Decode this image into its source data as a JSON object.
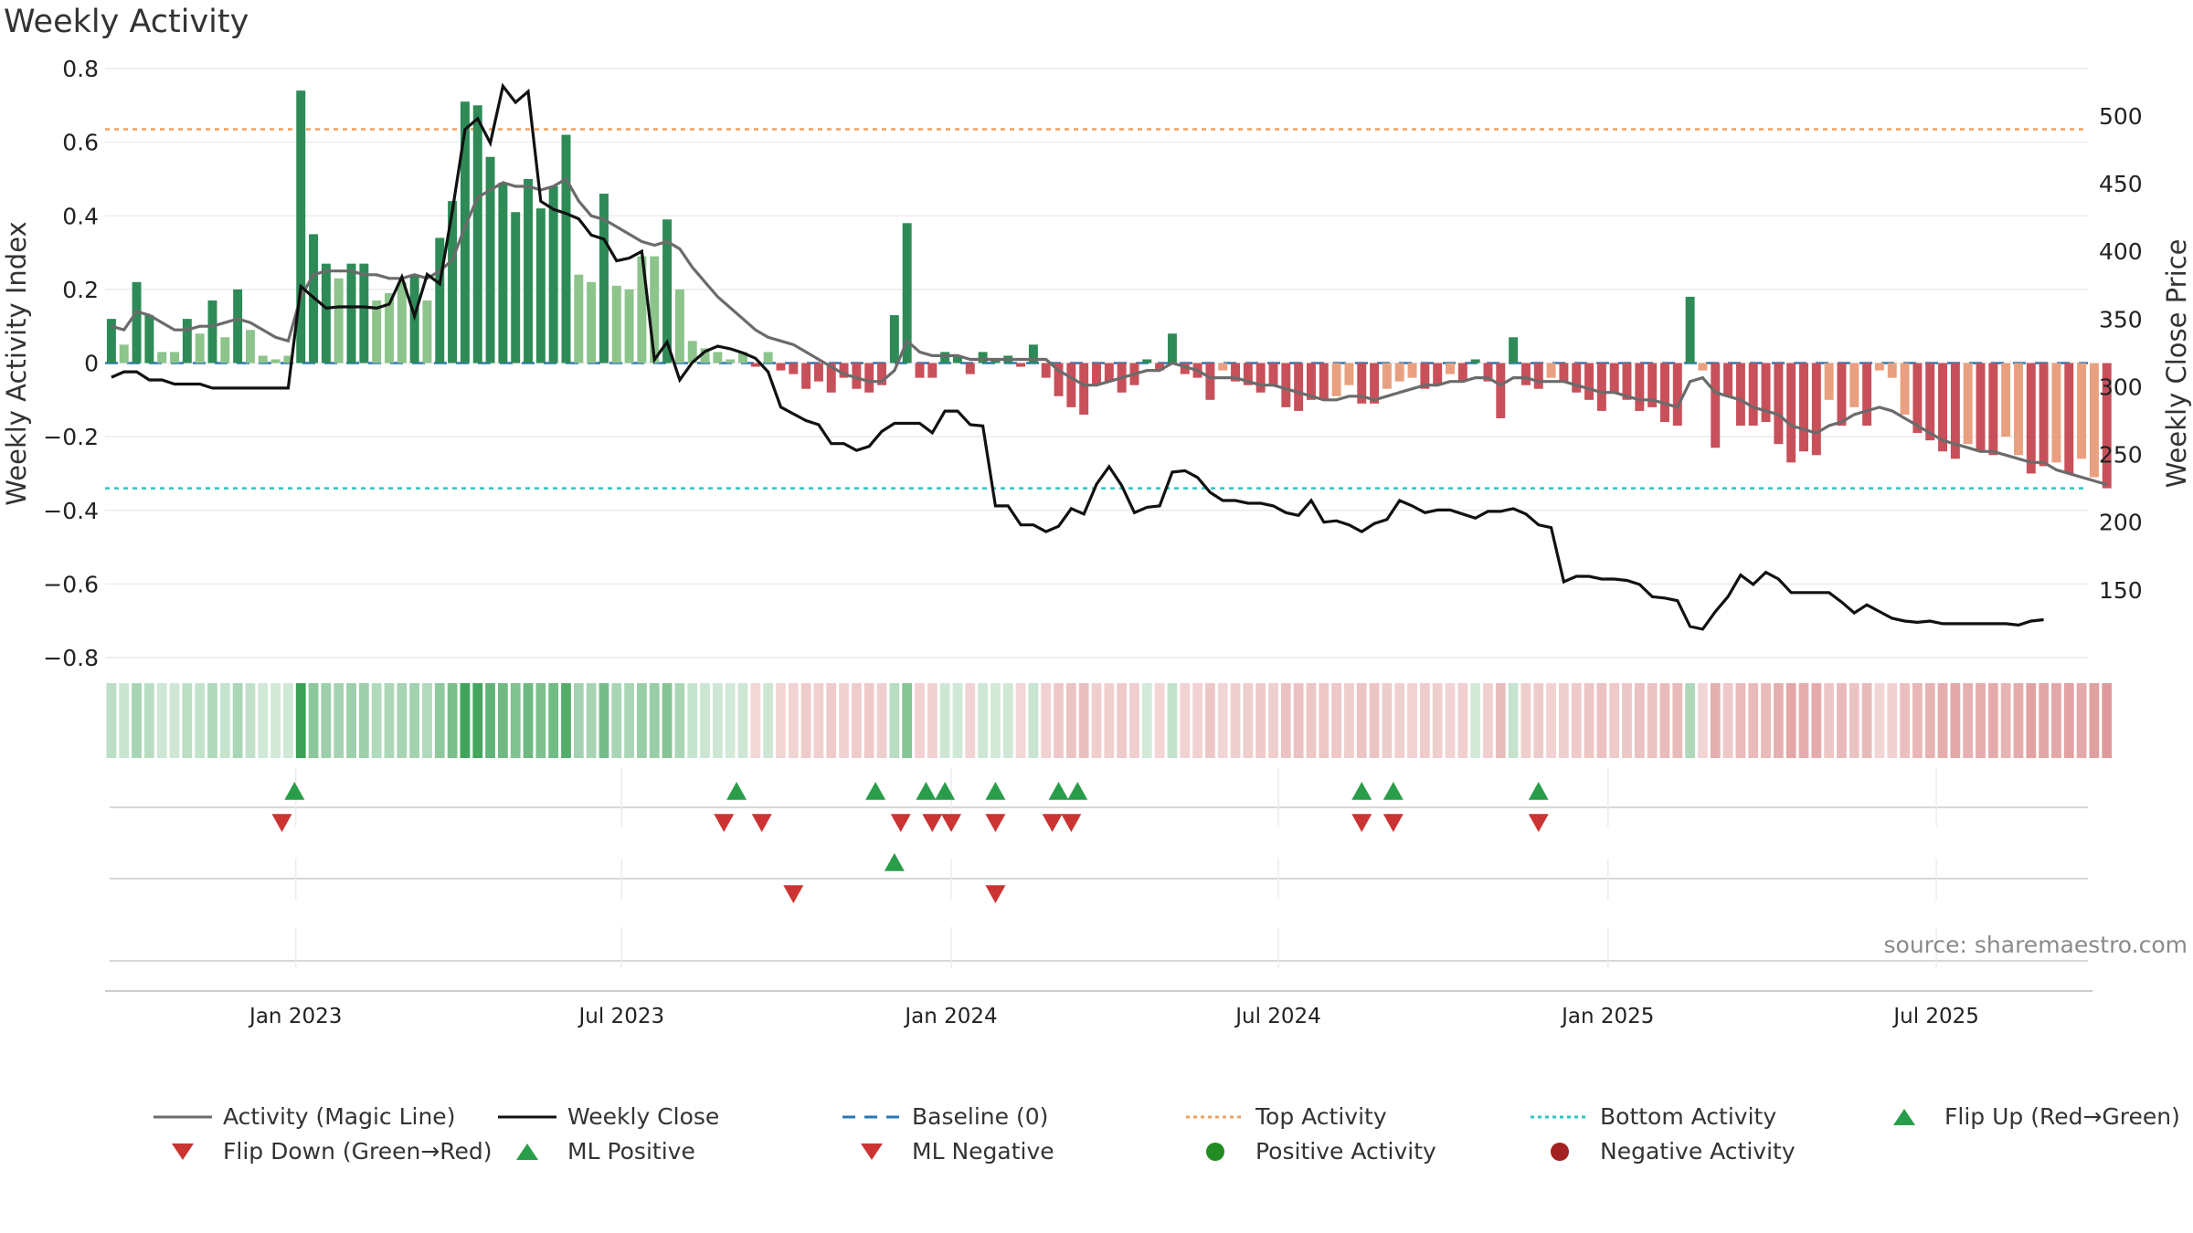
{
  "chart_data": {
    "type": "bar",
    "title": "Weekly Activity",
    "ylabel": "Weekly Activity Index",
    "y2label": "Weekly Close Price",
    "ylim": [
      -0.8,
      0.8
    ],
    "y2lim": [
      100,
      535
    ],
    "yticks": [
      "0.8",
      "0.6",
      "0.4",
      "0.2",
      "0",
      "−0.2",
      "−0.4",
      "−0.6",
      "−0.8"
    ],
    "yticks_values": [
      0.8,
      0.6,
      0.4,
      0.2,
      0,
      -0.2,
      -0.4,
      -0.6,
      -0.8
    ],
    "y2ticks": [
      "500",
      "450",
      "400",
      "350",
      "300",
      "250",
      "200",
      "150"
    ],
    "y2ticks_values": [
      500,
      450,
      400,
      350,
      300,
      250,
      200,
      150
    ],
    "xticks": [
      "Jan 2023",
      "Jul 2023",
      "Jan 2024",
      "Jul 2024",
      "Jan 2025",
      "Jul 2025"
    ],
    "xticks_weeks": [
      14.6,
      40.4,
      66.5,
      92.4,
      118.5,
      144.5
    ],
    "week_count": 157,
    "reference_lines": {
      "top_activity": 0.635,
      "bottom_activity": -0.34,
      "baseline": 0
    },
    "activity": [
      0.12,
      0.05,
      0.22,
      0.13,
      0.03,
      0.03,
      0.12,
      0.08,
      0.17,
      0.07,
      0.2,
      0.09,
      0.02,
      0.01,
      0.02,
      0.74,
      0.35,
      0.27,
      0.23,
      0.27,
      0.27,
      0.17,
      0.19,
      0.22,
      0.24,
      0.17,
      0.34,
      0.44,
      0.71,
      0.7,
      0.56,
      0.49,
      0.41,
      0.5,
      0.42,
      0.48,
      0.62,
      0.24,
      0.22,
      0.46,
      0.21,
      0.2,
      0.29,
      0.29,
      0.39,
      0.2,
      0.06,
      0.04,
      0.03,
      0.01,
      0.03,
      -0.01,
      0.03,
      -0.02,
      -0.03,
      -0.07,
      -0.05,
      -0.08,
      -0.04,
      -0.07,
      -0.08,
      -0.06,
      0.13,
      0.38,
      -0.04,
      -0.04,
      0.03,
      0.02,
      -0.03,
      0.03,
      0.01,
      0.02,
      -0.01,
      0.05,
      -0.04,
      -0.09,
      -0.12,
      -0.14,
      -0.06,
      -0.05,
      -0.08,
      -0.06,
      0.01,
      -0.02,
      0.08,
      -0.03,
      -0.04,
      -0.1,
      -0.02,
      -0.05,
      -0.06,
      -0.08,
      -0.06,
      -0.12,
      -0.13,
      -0.1,
      -0.1,
      -0.09,
      -0.06,
      -0.11,
      -0.11,
      -0.07,
      -0.05,
      -0.04,
      -0.07,
      -0.06,
      -0.03,
      -0.05,
      0.01,
      -0.05,
      -0.15,
      0.07,
      -0.06,
      -0.07,
      -0.04,
      -0.05,
      -0.08,
      -0.1,
      -0.13,
      -0.08,
      -0.1,
      -0.13,
      -0.12,
      -0.16,
      -0.17,
      0.18,
      -0.02,
      -0.23,
      -0.09,
      -0.17,
      -0.17,
      -0.16,
      -0.22,
      -0.27,
      -0.24,
      -0.25,
      -0.1,
      -0.17,
      -0.12,
      -0.17,
      -0.02,
      -0.04,
      -0.14,
      -0.19,
      -0.21,
      -0.24,
      -0.26,
      -0.22,
      -0.24,
      -0.25,
      -0.2,
      -0.25,
      -0.3,
      -0.28,
      -0.27,
      -0.3,
      -0.26,
      -0.31,
      -0.34
    ],
    "series": [
      {
        "name": "Activity (Magic Line)",
        "values": [
          0.1,
          0.09,
          0.14,
          0.13,
          0.11,
          0.09,
          0.09,
          0.1,
          0.1,
          0.11,
          0.12,
          0.11,
          0.09,
          0.07,
          0.06,
          0.18,
          0.24,
          0.25,
          0.25,
          0.25,
          0.24,
          0.24,
          0.23,
          0.23,
          0.24,
          0.23,
          0.25,
          0.28,
          0.37,
          0.45,
          0.47,
          0.49,
          0.48,
          0.48,
          0.47,
          0.48,
          0.5,
          0.44,
          0.4,
          0.39,
          0.37,
          0.35,
          0.33,
          0.32,
          0.33,
          0.31,
          0.26,
          0.22,
          0.18,
          0.15,
          0.12,
          0.09,
          0.07,
          0.06,
          0.05,
          0.03,
          0.01,
          -0.01,
          -0.03,
          -0.04,
          -0.05,
          -0.05,
          -0.02,
          0.06,
          0.03,
          0.02,
          0.02,
          0.02,
          0.01,
          0.01,
          0.01,
          0.01,
          0.01,
          0.01,
          0.01,
          -0.02,
          -0.04,
          -0.06,
          -0.06,
          -0.05,
          -0.04,
          -0.03,
          -0.02,
          -0.02,
          0.0,
          -0.01,
          -0.02,
          -0.04,
          -0.04,
          -0.04,
          -0.05,
          -0.06,
          -0.06,
          -0.07,
          -0.08,
          -0.09,
          -0.1,
          -0.1,
          -0.09,
          -0.09,
          -0.1,
          -0.09,
          -0.08,
          -0.07,
          -0.06,
          -0.06,
          -0.05,
          -0.05,
          -0.04,
          -0.04,
          -0.06,
          -0.04,
          -0.04,
          -0.05,
          -0.05,
          -0.05,
          -0.06,
          -0.07,
          -0.08,
          -0.08,
          -0.09,
          -0.1,
          -0.1,
          -0.11,
          -0.12,
          -0.05,
          -0.04,
          -0.08,
          -0.09,
          -0.1,
          -0.12,
          -0.13,
          -0.14,
          -0.17,
          -0.18,
          -0.19,
          -0.17,
          -0.16,
          -0.14,
          -0.13,
          -0.12,
          -0.13,
          -0.15,
          -0.17,
          -0.19,
          -0.21,
          -0.22,
          -0.23,
          -0.24,
          -0.24,
          -0.25,
          -0.26,
          -0.27,
          -0.27,
          -0.29,
          -0.3,
          -0.31,
          -0.32,
          -0.33
        ]
      },
      {
        "name": "Weekly Close",
        "values": [
          307,
          311,
          311,
          305,
          305,
          302,
          302,
          302,
          299,
          299,
          299,
          299,
          299,
          299,
          299,
          374,
          366,
          358,
          359,
          359,
          359,
          358,
          361,
          381,
          352,
          383,
          376,
          430,
          490,
          498,
          480,
          522,
          510,
          518,
          437,
          431,
          428,
          424,
          412,
          409,
          393,
          395,
          400,
          320,
          333,
          305,
          318,
          326,
          330,
          328,
          325,
          321,
          311,
          285,
          280,
          275,
          272,
          258,
          258,
          253,
          256,
          267,
          273,
          273,
          273,
          266,
          282,
          282,
          272,
          271,
          212,
          212,
          198,
          198,
          193,
          197,
          210,
          206,
          228,
          241,
          227,
          207,
          211,
          212,
          237,
          238,
          233,
          222,
          216,
          216,
          214,
          214,
          212,
          207,
          205,
          216,
          200,
          201,
          198,
          193,
          199,
          202,
          216,
          212,
          207,
          209,
          209,
          206,
          203,
          208,
          208,
          210,
          206,
          198,
          196,
          156,
          160,
          160,
          158,
          158,
          157,
          154,
          145,
          144,
          142,
          123,
          121,
          134,
          145,
          161,
          154,
          163,
          158,
          148,
          148,
          148,
          148,
          141,
          133,
          139,
          134,
          129,
          127,
          126,
          127,
          125,
          125,
          125,
          125,
          125,
          125,
          124,
          127,
          128
        ]
      }
    ],
    "flip_up_weeks": [
      14.5,
      49.5,
      60.5,
      64.5,
      66.0,
      70.0,
      75.0,
      76.5,
      99.0,
      101.5,
      113.0
    ],
    "flip_down_weeks": [
      13.5,
      48.5,
      51.5,
      62.5,
      65.0,
      66.5,
      70.0,
      74.5,
      76.0,
      99.0,
      101.5,
      113.0
    ],
    "ml_positive_weeks": [
      62.0
    ],
    "ml_negative_weeks": [
      54.0,
      70.0
    ],
    "colors": {
      "strong_green": "#2e8b57",
      "light_green": "#8cc48c",
      "strong_red": "#c8505a",
      "light_red": "#e8a080",
      "magic_line": "#6b6b6b",
      "close": "#111111",
      "baseline": "#2a78b5",
      "top": "#f0a060",
      "bottom": "#2ec4c4",
      "marker_green": "#2a9d4a",
      "marker_red": "#cc3333"
    }
  },
  "legend": [
    {
      "label": "Activity (Magic Line)",
      "icon": "solid-line-gray"
    },
    {
      "label": "Weekly Close",
      "icon": "solid-line-black"
    },
    {
      "label": "Baseline (0)",
      "icon": "dashed-line-blue"
    },
    {
      "label": "Top Activity",
      "icon": "dotted-line-orange"
    },
    {
      "label": "Bottom Activity",
      "icon": "dotted-line-cyan"
    },
    {
      "label": "Flip Up (Red→Green)",
      "icon": "triangle-up-green"
    },
    {
      "label": "Flip Down (Green→Red)",
      "icon": "triangle-down-red"
    },
    {
      "label": "ML Positive",
      "icon": "triangle-up-green"
    },
    {
      "label": "ML Negative",
      "icon": "triangle-down-red"
    },
    {
      "label": "Positive Activity",
      "icon": "circle-green"
    },
    {
      "label": "Negative Activity",
      "icon": "circle-darkred"
    }
  ],
  "source": "source: sharemaestro.com"
}
